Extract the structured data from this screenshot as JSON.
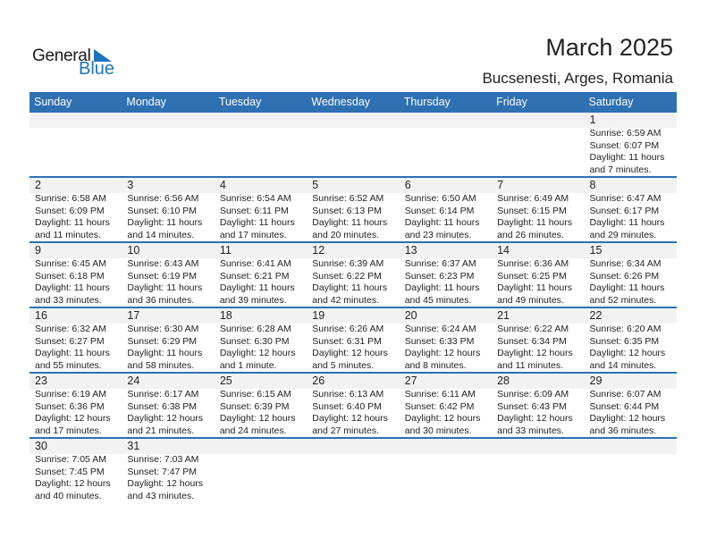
{
  "logo": {
    "text_general": "General",
    "text_blue": "Blue",
    "color": "#1f74c0"
  },
  "title": "March 2025",
  "location": "Bucsenesti, Arges, Romania",
  "colors": {
    "header": "#2e70b1",
    "band": "#f2f2f2"
  },
  "weekdays": [
    "Sunday",
    "Monday",
    "Tuesday",
    "Wednesday",
    "Thursday",
    "Friday",
    "Saturday"
  ],
  "weeks": [
    [
      null,
      null,
      null,
      null,
      null,
      null,
      {
        "day": "1",
        "sunrise": "Sunrise: 6:59 AM",
        "sunset": "Sunset: 6:07 PM",
        "daylight1": "Daylight: 11 hours",
        "daylight2": "and 7 minutes."
      }
    ],
    [
      {
        "day": "2",
        "sunrise": "Sunrise: 6:58 AM",
        "sunset": "Sunset: 6:09 PM",
        "daylight1": "Daylight: 11 hours",
        "daylight2": "and 11 minutes."
      },
      {
        "day": "3",
        "sunrise": "Sunrise: 6:56 AM",
        "sunset": "Sunset: 6:10 PM",
        "daylight1": "Daylight: 11 hours",
        "daylight2": "and 14 minutes."
      },
      {
        "day": "4",
        "sunrise": "Sunrise: 6:54 AM",
        "sunset": "Sunset: 6:11 PM",
        "daylight1": "Daylight: 11 hours",
        "daylight2": "and 17 minutes."
      },
      {
        "day": "5",
        "sunrise": "Sunrise: 6:52 AM",
        "sunset": "Sunset: 6:13 PM",
        "daylight1": "Daylight: 11 hours",
        "daylight2": "and 20 minutes."
      },
      {
        "day": "6",
        "sunrise": "Sunrise: 6:50 AM",
        "sunset": "Sunset: 6:14 PM",
        "daylight1": "Daylight: 11 hours",
        "daylight2": "and 23 minutes."
      },
      {
        "day": "7",
        "sunrise": "Sunrise: 6:49 AM",
        "sunset": "Sunset: 6:15 PM",
        "daylight1": "Daylight: 11 hours",
        "daylight2": "and 26 minutes."
      },
      {
        "day": "8",
        "sunrise": "Sunrise: 6:47 AM",
        "sunset": "Sunset: 6:17 PM",
        "daylight1": "Daylight: 11 hours",
        "daylight2": "and 29 minutes."
      }
    ],
    [
      {
        "day": "9",
        "sunrise": "Sunrise: 6:45 AM",
        "sunset": "Sunset: 6:18 PM",
        "daylight1": "Daylight: 11 hours",
        "daylight2": "and 33 minutes."
      },
      {
        "day": "10",
        "sunrise": "Sunrise: 6:43 AM",
        "sunset": "Sunset: 6:19 PM",
        "daylight1": "Daylight: 11 hours",
        "daylight2": "and 36 minutes."
      },
      {
        "day": "11",
        "sunrise": "Sunrise: 6:41 AM",
        "sunset": "Sunset: 6:21 PM",
        "daylight1": "Daylight: 11 hours",
        "daylight2": "and 39 minutes."
      },
      {
        "day": "12",
        "sunrise": "Sunrise: 6:39 AM",
        "sunset": "Sunset: 6:22 PM",
        "daylight1": "Daylight: 11 hours",
        "daylight2": "and 42 minutes."
      },
      {
        "day": "13",
        "sunrise": "Sunrise: 6:37 AM",
        "sunset": "Sunset: 6:23 PM",
        "daylight1": "Daylight: 11 hours",
        "daylight2": "and 45 minutes."
      },
      {
        "day": "14",
        "sunrise": "Sunrise: 6:36 AM",
        "sunset": "Sunset: 6:25 PM",
        "daylight1": "Daylight: 11 hours",
        "daylight2": "and 49 minutes."
      },
      {
        "day": "15",
        "sunrise": "Sunrise: 6:34 AM",
        "sunset": "Sunset: 6:26 PM",
        "daylight1": "Daylight: 11 hours",
        "daylight2": "and 52 minutes."
      }
    ],
    [
      {
        "day": "16",
        "sunrise": "Sunrise: 6:32 AM",
        "sunset": "Sunset: 6:27 PM",
        "daylight1": "Daylight: 11 hours",
        "daylight2": "and 55 minutes."
      },
      {
        "day": "17",
        "sunrise": "Sunrise: 6:30 AM",
        "sunset": "Sunset: 6:29 PM",
        "daylight1": "Daylight: 11 hours",
        "daylight2": "and 58 minutes."
      },
      {
        "day": "18",
        "sunrise": "Sunrise: 6:28 AM",
        "sunset": "Sunset: 6:30 PM",
        "daylight1": "Daylight: 12 hours",
        "daylight2": "and 1 minute."
      },
      {
        "day": "19",
        "sunrise": "Sunrise: 6:26 AM",
        "sunset": "Sunset: 6:31 PM",
        "daylight1": "Daylight: 12 hours",
        "daylight2": "and 5 minutes."
      },
      {
        "day": "20",
        "sunrise": "Sunrise: 6:24 AM",
        "sunset": "Sunset: 6:33 PM",
        "daylight1": "Daylight: 12 hours",
        "daylight2": "and 8 minutes."
      },
      {
        "day": "21",
        "sunrise": "Sunrise: 6:22 AM",
        "sunset": "Sunset: 6:34 PM",
        "daylight1": "Daylight: 12 hours",
        "daylight2": "and 11 minutes."
      },
      {
        "day": "22",
        "sunrise": "Sunrise: 6:20 AM",
        "sunset": "Sunset: 6:35 PM",
        "daylight1": "Daylight: 12 hours",
        "daylight2": "and 14 minutes."
      }
    ],
    [
      {
        "day": "23",
        "sunrise": "Sunrise: 6:19 AM",
        "sunset": "Sunset: 6:36 PM",
        "daylight1": "Daylight: 12 hours",
        "daylight2": "and 17 minutes."
      },
      {
        "day": "24",
        "sunrise": "Sunrise: 6:17 AM",
        "sunset": "Sunset: 6:38 PM",
        "daylight1": "Daylight: 12 hours",
        "daylight2": "and 21 minutes."
      },
      {
        "day": "25",
        "sunrise": "Sunrise: 6:15 AM",
        "sunset": "Sunset: 6:39 PM",
        "daylight1": "Daylight: 12 hours",
        "daylight2": "and 24 minutes."
      },
      {
        "day": "26",
        "sunrise": "Sunrise: 6:13 AM",
        "sunset": "Sunset: 6:40 PM",
        "daylight1": "Daylight: 12 hours",
        "daylight2": "and 27 minutes."
      },
      {
        "day": "27",
        "sunrise": "Sunrise: 6:11 AM",
        "sunset": "Sunset: 6:42 PM",
        "daylight1": "Daylight: 12 hours",
        "daylight2": "and 30 minutes."
      },
      {
        "day": "28",
        "sunrise": "Sunrise: 6:09 AM",
        "sunset": "Sunset: 6:43 PM",
        "daylight1": "Daylight: 12 hours",
        "daylight2": "and 33 minutes."
      },
      {
        "day": "29",
        "sunrise": "Sunrise: 6:07 AM",
        "sunset": "Sunset: 6:44 PM",
        "daylight1": "Daylight: 12 hours",
        "daylight2": "and 36 minutes."
      }
    ],
    [
      {
        "day": "30",
        "sunrise": "Sunrise: 7:05 AM",
        "sunset": "Sunset: 7:45 PM",
        "daylight1": "Daylight: 12 hours",
        "daylight2": "and 40 minutes."
      },
      {
        "day": "31",
        "sunrise": "Sunrise: 7:03 AM",
        "sunset": "Sunset: 7:47 PM",
        "daylight1": "Daylight: 12 hours",
        "daylight2": "and 43 minutes."
      },
      null,
      null,
      null,
      null,
      null
    ]
  ]
}
